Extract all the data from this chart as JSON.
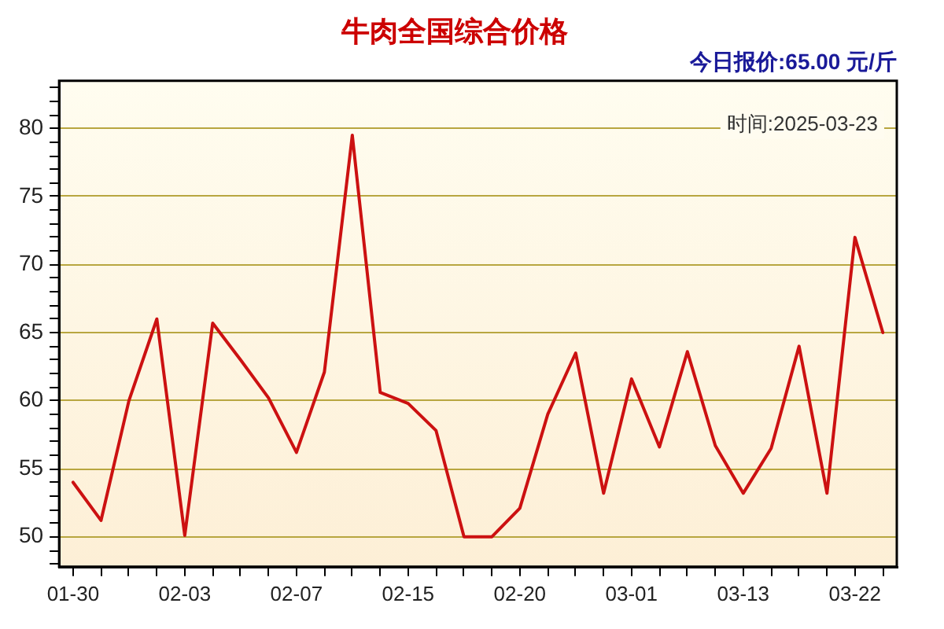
{
  "chart_data": {
    "type": "line",
    "title": "牛肉全国综合价格",
    "subtitle": "今日报价:65.00 元/斤",
    "annotations": [
      "时间:2025-03-23"
    ],
    "categories": [
      "01-30",
      null,
      null,
      null,
      "02-03",
      null,
      null,
      null,
      "02-07",
      null,
      null,
      null,
      "02-15",
      null,
      null,
      null,
      "02-20",
      null,
      null,
      null,
      "03-01",
      null,
      null,
      null,
      "03-13",
      null,
      null,
      null,
      "03-22",
      null
    ],
    "series": [
      {
        "color": "#cc1111",
        "values": [
          54.0,
          51.2,
          60.0,
          66.0,
          50.1,
          65.7,
          63.0,
          60.2,
          56.2,
          62.1,
          79.5,
          60.6,
          59.8,
          57.8,
          50.0,
          50.0,
          52.1,
          59.0,
          63.5,
          53.2,
          61.6,
          56.6,
          63.6,
          56.7,
          53.2,
          56.5,
          64.0,
          53.2,
          72.0,
          65.0
        ]
      }
    ],
    "ylim": [
      47.8,
      83.5
    ],
    "yticks": [
      {
        "value": 48,
        "label": null
      },
      {
        "value": 49,
        "label": null
      },
      50,
      {
        "value": 51,
        "label": null
      },
      {
        "value": 52,
        "label": null
      },
      {
        "value": 53,
        "label": null
      },
      {
        "value": 54,
        "label": null
      },
      55,
      {
        "value": 56,
        "label": null
      },
      {
        "value": 57,
        "label": null
      },
      {
        "value": 58,
        "label": null
      },
      {
        "value": 59,
        "label": null
      },
      60,
      {
        "value": 61,
        "label": null
      },
      {
        "value": 62,
        "label": null
      },
      {
        "value": 63,
        "label": null
      },
      {
        "value": 64,
        "label": null
      },
      65,
      {
        "value": 66,
        "label": null
      },
      {
        "value": 67,
        "label": null
      },
      {
        "value": 68,
        "label": null
      },
      {
        "value": 69,
        "label": null
      },
      70,
      {
        "value": 71,
        "label": null
      },
      {
        "value": 72,
        "label": null
      },
      {
        "value": 73,
        "label": null
      },
      {
        "value": 74,
        "label": null
      },
      75,
      {
        "value": 76,
        "label": null
      },
      {
        "value": 77,
        "label": null
      },
      {
        "value": 78,
        "label": null
      },
      {
        "value": 79,
        "label": null
      },
      80,
      {
        "value": 81,
        "label": null
      },
      {
        "value": 82,
        "label": null
      },
      {
        "value": 83,
        "label": null
      }
    ],
    "grid": "y",
    "legend": false,
    "marker": "none",
    "line_style": "solid"
  }
}
